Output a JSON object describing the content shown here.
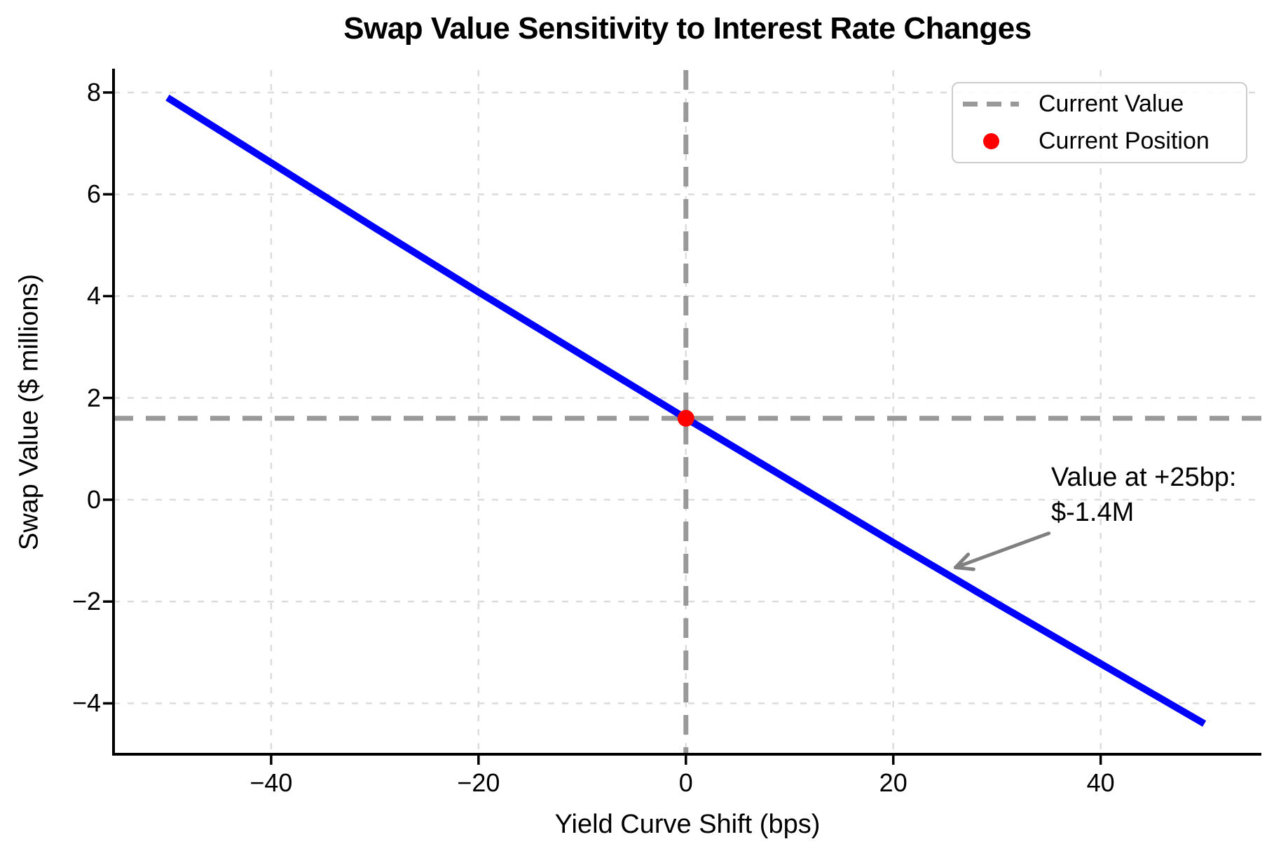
{
  "figure": {
    "background": "#ffffff"
  },
  "chart_data": {
    "type": "line",
    "title": "Swap Value Sensitivity to Interest Rate Changes",
    "xlabel": "Yield Curve Shift (bps)",
    "ylabel": "Swap Value ($ millions)",
    "xlim": [
      -55.2,
      55.5
    ],
    "ylim": [
      -5.0,
      8.44
    ],
    "xticks": [
      -40,
      -20,
      0,
      20,
      40
    ],
    "yticks": [
      8,
      6,
      4,
      2,
      0,
      -2,
      -4
    ],
    "grid": true,
    "grid_color": "#dcdcdc",
    "spine_color": "#000000",
    "series": [
      {
        "name": "swap-value-curve",
        "color": "#0000ff",
        "x": [
          -50,
          -40,
          -30,
          -20,
          -10,
          0,
          10,
          20,
          25,
          30,
          40,
          50
        ],
        "y": [
          7.9,
          6.62,
          5.34,
          4.08,
          2.84,
          1.6,
          0.38,
          -0.84,
          -1.44,
          -2.04,
          -3.22,
          -4.4
        ]
      }
    ],
    "reference_lines": {
      "current_value_hline": {
        "y": 1.6,
        "color": "#999999",
        "style": "dashed"
      },
      "zero_shift_vline": {
        "x": 0,
        "color": "#999999",
        "style": "dashed"
      }
    },
    "current_position": {
      "x": 0,
      "y": 1.6,
      "color": "#ff0000"
    },
    "legend": {
      "position": "upper right",
      "entries": [
        {
          "label": "Current Value",
          "marker": "dashed-line",
          "color": "#999999"
        },
        {
          "label": "Current Position",
          "marker": "dot",
          "color": "#ff0000"
        }
      ]
    },
    "annotation": {
      "text_line1": "Value at +25bp:",
      "text_line2": "$-1.4M",
      "arrow_color": "#808080",
      "arrow_tail": {
        "x": 35.0,
        "y": -0.66
      },
      "arrow_tip": {
        "x": 26.0,
        "y": -1.33
      }
    }
  }
}
